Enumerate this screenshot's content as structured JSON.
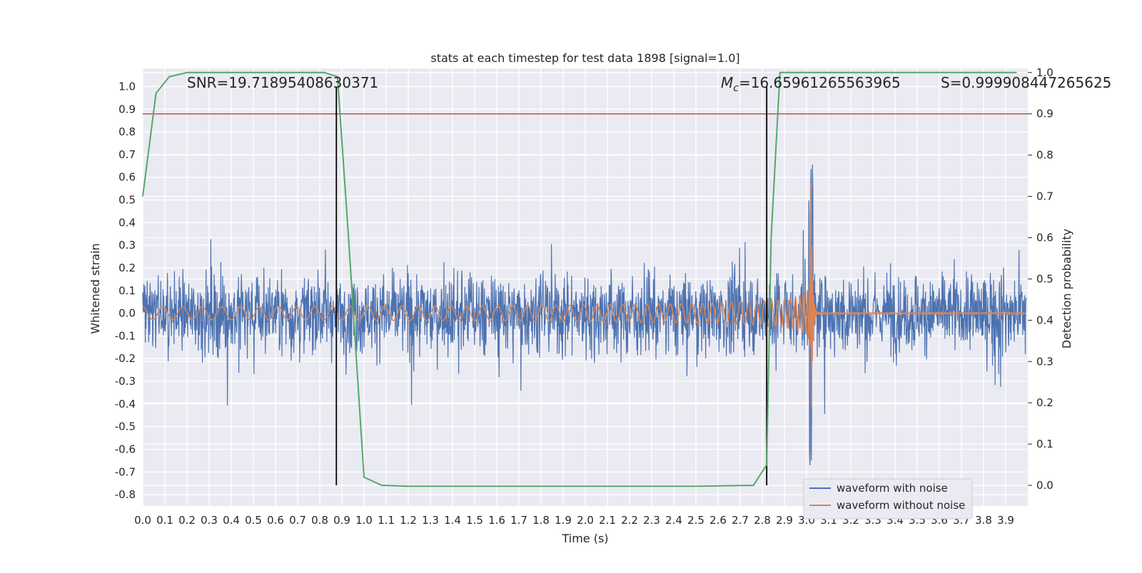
{
  "chart_data": {
    "type": "line",
    "title": "stats at each timestep for test data 1898 [signal=1.0]",
    "xlabel": "Time (s)",
    "ylabel": "Whitened strain",
    "ylabel_right": "Detection probability",
    "xlim": [
      0.0,
      4.0
    ],
    "ylim": [
      -0.85,
      1.08
    ],
    "ylim_right": [
      -0.05,
      1.01
    ],
    "x_ticks": [
      "0.0",
      "0.1",
      "0.2",
      "0.3",
      "0.4",
      "0.5",
      "0.6",
      "0.7",
      "0.8",
      "0.9",
      "1.0",
      "1.1",
      "1.2",
      "1.3",
      "1.4",
      "1.5",
      "1.6",
      "1.7",
      "1.8",
      "1.9",
      "2.0",
      "2.1",
      "2.2",
      "2.3",
      "2.4",
      "2.5",
      "2.6",
      "2.7",
      "2.8",
      "2.9",
      "3.0",
      "3.1",
      "3.2",
      "3.3",
      "3.4",
      "3.5",
      "3.6",
      "3.7",
      "3.8",
      "3.9"
    ],
    "y_ticks": [
      "1.0",
      "0.9",
      "0.8",
      "0.7",
      "0.6",
      "0.5",
      "0.4",
      "0.3",
      "0.2",
      "0.1",
      "0.0",
      "-0.1",
      "-0.2",
      "-0.3",
      "-0.4",
      "-0.5",
      "-0.6",
      "-0.7",
      "-0.8"
    ],
    "y_ticks_right": [
      "1.0",
      "0.9",
      "0.8",
      "0.7",
      "0.6",
      "0.5",
      "0.4",
      "0.3",
      "0.2",
      "0.1",
      "0.0"
    ],
    "grid": true,
    "legend_placement": "lower-right",
    "series": [
      {
        "name": "waveform with noise",
        "color": "#4c72b0",
        "description": "noisy whitened strain, approx amplitude 0.1 to 0.5, peak 1.0 near t=3.02"
      },
      {
        "name": "waveform without noise",
        "color": "#dd8452",
        "description": "chirp signal increasing in amplitude and frequency, merger near t=3.02, peak 0.64"
      },
      {
        "name": "",
        "color": "#55a868",
        "axis": "right",
        "x": [
          0.0,
          0.06,
          0.12,
          0.2,
          0.3,
          0.5,
          0.7,
          0.82,
          0.88,
          0.93,
          1.0,
          1.08,
          1.2,
          1.5,
          2.0,
          2.5,
          2.76,
          2.82,
          2.84,
          2.88,
          3.0,
          3.5,
          3.95
        ],
        "values": [
          0.7,
          0.95,
          0.99,
          1.0,
          1.0,
          1.0,
          1.0,
          1.0,
          0.99,
          0.6,
          0.02,
          0.0,
          -0.002,
          -0.002,
          -0.002,
          -0.002,
          0.0,
          0.05,
          0.6,
          1.0,
          1.0,
          1.0,
          1.0
        ]
      }
    ],
    "reference_lines": [
      {
        "orientation": "horizontal",
        "axis": "right",
        "value": 0.9,
        "color": "#c44e52"
      },
      {
        "orientation": "vertical",
        "value": 0.875,
        "color": "#000000"
      },
      {
        "orientation": "vertical",
        "value": 2.82,
        "color": "#000000"
      }
    ],
    "annotations": {
      "snr": "SNR=19.71895408630371",
      "mc_prefix": "M",
      "mc_sub": "c",
      "mc_value": "=16.65961265563965",
      "s": "S=0.999908447265625"
    }
  }
}
